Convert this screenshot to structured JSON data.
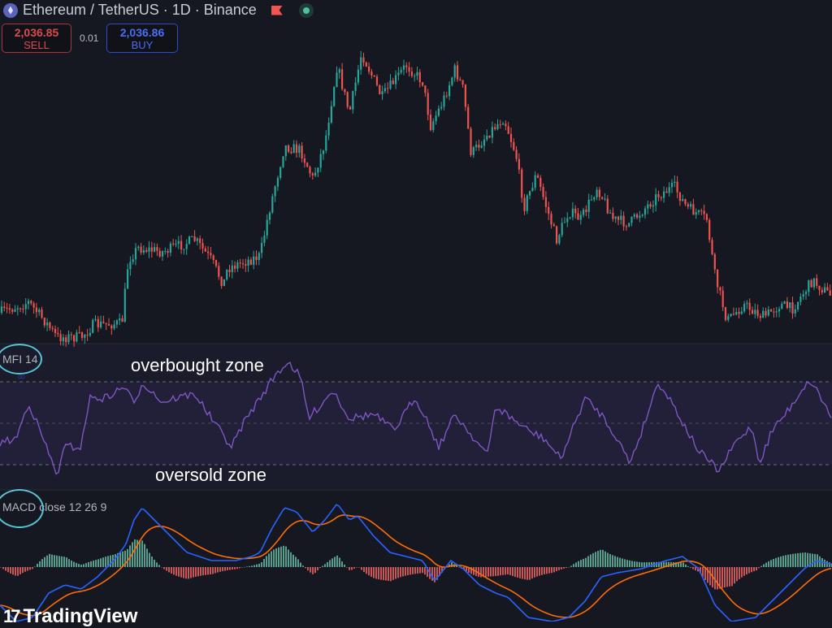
{
  "header": {
    "symbol_title": "Ethereum / TetherUS · 1D · Binance",
    "icons": [
      "ethereum-icon",
      "flag-icon",
      "market-status-dot-icon"
    ]
  },
  "trade": {
    "sell_price": "2,036.85",
    "sell_label": "SELL",
    "spread": "0.01",
    "buy_price": "2,036.86",
    "buy_label": "BUY"
  },
  "indicators": {
    "mfi_label": "MFI 14",
    "macd_label": "MACD close 12 26 9"
  },
  "annotations": {
    "overbought": "overbought zone",
    "oversold": "oversold zone"
  },
  "branding": {
    "logo_text": "TradingView"
  },
  "colors": {
    "background": "#151821",
    "up_candle": "#26a69a",
    "down_candle": "#ef5350",
    "mfi_line": "#7e57c2",
    "macd_line": "#2962ff",
    "signal_line": "#ff6d00",
    "annotation_ring": "#56c3d6"
  }
}
